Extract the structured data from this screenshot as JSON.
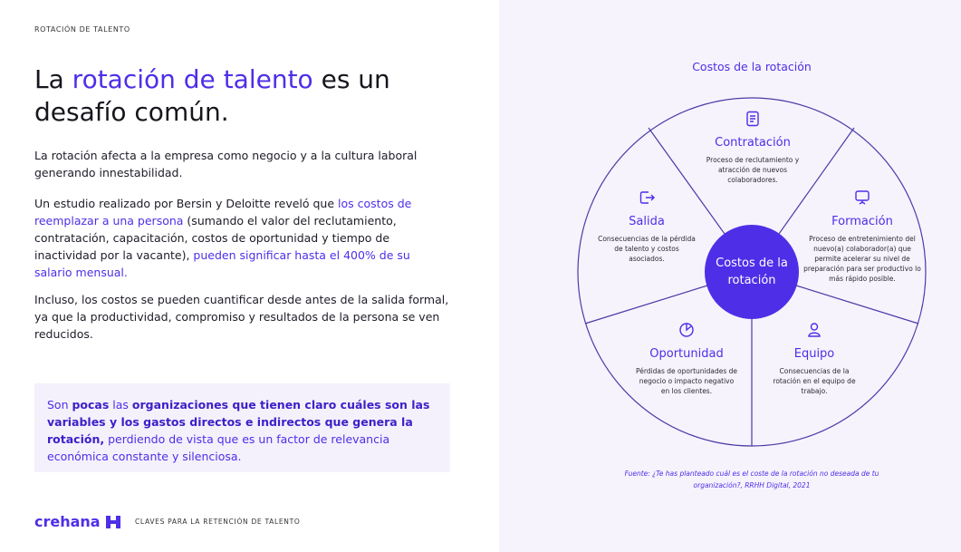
{
  "header": {
    "kicker": "ROTACIÓN DE TALENTO"
  },
  "title": {
    "pre": "La ",
    "accent": "rotación de talento",
    "post": " es un desafío común."
  },
  "paragraphs": {
    "p1": "La rotación afecta a la empresa como negocio y a la cultura laboral generando innestabilidad.",
    "p2a": "Un estudio realizado por Bersin y Deloitte reveló que ",
    "p2b": "los costos de reemplazar a una persona",
    "p2c": " (sumando el valor del reclutamiento, contratación, capacitación, costos de oportunidad y tiempo de inactividad por la vacante), ",
    "p2d": "pueden significar hasta el 400% de su salario mensual.",
    "p3": "Incluso, los costos se pueden cuantificar desde antes de la salida formal, ya que la productividad, compromiso y resultados de la persona se ven reducidos."
  },
  "callout": {
    "a": "Son ",
    "b": "pocas",
    "c": " las ",
    "d": "organizaciones que tienen claro cuáles son las variables y los gastos directos e indirectos que genera la rotación,",
    "e": " perdiendo de vista que es un factor de relevancia económica constante y silenciosa."
  },
  "footer": {
    "logo": "crehana",
    "text": "CLAVES PARA LA RETENCIÓN DE TALENTO"
  },
  "diagram": {
    "title": "Costos de la rotación",
    "center": "Costos de la rotación",
    "accent_color": "#4f2ee8",
    "segments": [
      {
        "icon": "document-icon",
        "title": "Contratación",
        "desc": "Proceso de reclutamiento y atracción de nuevos colaboradores."
      },
      {
        "icon": "presentation-icon",
        "title": "Formación",
        "desc": "Proceso de entretenimiento del nuevo(a) colaborador(a) que permite acelerar su nivel de preparación para ser productivo lo más rápido posible."
      },
      {
        "icon": "user-icon",
        "title": "Equipo",
        "desc": "Consecuencias de la rotación en el equipo de trabajo."
      },
      {
        "icon": "pie-chart-icon",
        "title": "Oportunidad",
        "desc": "Pérdidas de oportunidades de negocio o impacto negativo en los clientes."
      },
      {
        "icon": "exit-icon",
        "title": "Salida",
        "desc": "Consecuencias de la pérdida de talento y costos asociados."
      }
    ],
    "source": "Fuente: ¿Te has planteado cuál es el coste de la rotación no deseada de tu organización?, RRHH Digital, 2021"
  }
}
